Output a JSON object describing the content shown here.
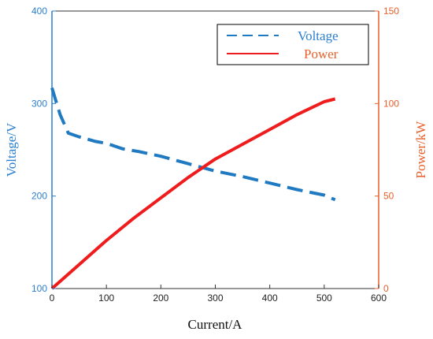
{
  "chart_data": {
    "type": "line",
    "xlabel": "Current/A",
    "ylabel_left": "Voltage/V",
    "ylabel_right": "Power/kW",
    "xlim": [
      0,
      600
    ],
    "ylim_left": [
      100,
      400
    ],
    "ylim_right": [
      0,
      150
    ],
    "x_ticks": [
      "0",
      "100",
      "200",
      "300",
      "400",
      "500",
      "600"
    ],
    "y_left_ticks": [
      "100",
      "200",
      "300",
      "400"
    ],
    "y_right_ticks": [
      "0",
      "50",
      "100",
      "150"
    ],
    "grid": false,
    "legend_position": "top-right",
    "colors": {
      "voltage": "#1f7ac2",
      "power": "#ee1c1c",
      "left_axis": "#2b7fd0",
      "right_axis": "#e8602c"
    },
    "series": [
      {
        "name": "Voltage",
        "axis": "left",
        "style": "dashed",
        "x": [
          0,
          5,
          15,
          30,
          50,
          80,
          100,
          130,
          160,
          200,
          250,
          300,
          350,
          400,
          450,
          500,
          520
        ],
        "y": [
          317,
          307,
          288,
          268,
          264,
          259,
          257,
          251,
          248,
          243,
          235,
          227,
          221,
          214,
          207,
          201,
          196
        ]
      },
      {
        "name": "Power",
        "axis": "right",
        "style": "solid",
        "x": [
          0,
          50,
          100,
          150,
          200,
          250,
          300,
          350,
          400,
          450,
          500,
          520
        ],
        "y": [
          0,
          13,
          26,
          38,
          49,
          60,
          70,
          78,
          86,
          94,
          101,
          102.5
        ]
      }
    ]
  }
}
